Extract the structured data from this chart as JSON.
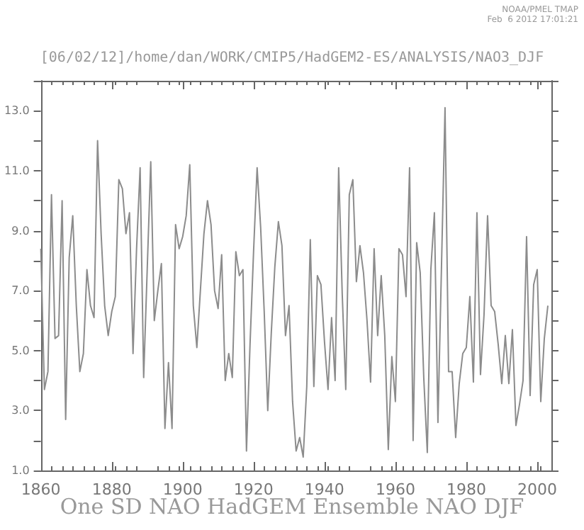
{
  "chart_data": {
    "type": "line",
    "title": "[06/02/12]/home/dan/WORK/CMIP5/HadGEM2-ES/ANALYSIS/NAO3_DJF",
    "xlabel": "One SD NAO HadGEM Ensemble NAO DJF",
    "annotations": [
      "NOAA/PMEL TMAP",
      "Feb  6 2012 17:01:21"
    ],
    "x": [
      1860,
      1861,
      1862,
      1863,
      1864,
      1865,
      1866,
      1867,
      1868,
      1869,
      1870,
      1871,
      1872,
      1873,
      1874,
      1875,
      1876,
      1877,
      1878,
      1879,
      1880,
      1881,
      1882,
      1883,
      1884,
      1885,
      1886,
      1887,
      1888,
      1889,
      1890,
      1891,
      1892,
      1893,
      1894,
      1895,
      1896,
      1897,
      1898,
      1899,
      1900,
      1901,
      1902,
      1903,
      1904,
      1905,
      1906,
      1907,
      1908,
      1909,
      1910,
      1911,
      1912,
      1913,
      1914,
      1915,
      1916,
      1917,
      1918,
      1919,
      1920,
      1921,
      1922,
      1923,
      1924,
      1925,
      1926,
      1927,
      1928,
      1929,
      1930,
      1931,
      1932,
      1933,
      1934,
      1935,
      1936,
      1937,
      1938,
      1939,
      1940,
      1941,
      1942,
      1943,
      1944,
      1945,
      1946,
      1947,
      1948,
      1949,
      1950,
      1951,
      1952,
      1953,
      1954,
      1955,
      1956,
      1957,
      1958,
      1959,
      1960,
      1961,
      1962,
      1963,
      1964,
      1965,
      1966,
      1967,
      1968,
      1969,
      1970,
      1971,
      1972,
      1973,
      1974,
      1975,
      1976,
      1977,
      1978,
      1979,
      1980,
      1981,
      1982,
      1983,
      1984,
      1985,
      1986,
      1987,
      1988,
      1989,
      1990,
      1991,
      1992,
      1993,
      1994,
      1995,
      1996,
      1997,
      1998,
      1999,
      2000,
      2001,
      2002,
      2003
    ],
    "series": [
      {
        "color": "#8c8c8c",
        "values": [
          8.4,
          3.7,
          4.3,
          10.2,
          5.4,
          5.5,
          10.0,
          2.7,
          8.1,
          9.5,
          6.5,
          4.3,
          4.9,
          7.7,
          6.5,
          6.1,
          12.0,
          8.9,
          6.5,
          5.5,
          6.3,
          6.8,
          10.7,
          10.4,
          8.9,
          9.6,
          4.9,
          8.4,
          11.1,
          4.1,
          7.7,
          11.3,
          6.0,
          7.0,
          7.9,
          2.4,
          4.6,
          2.4,
          9.2,
          8.4,
          8.8,
          9.5,
          11.2,
          6.5,
          5.1,
          7.0,
          8.9,
          10.0,
          9.2,
          7.0,
          6.4,
          8.2,
          4.0,
          4.9,
          4.1,
          8.3,
          7.5,
          7.7,
          1.65,
          5.2,
          8.3,
          11.1,
          9.1,
          6.3,
          3.0,
          5.6,
          7.8,
          9.3,
          8.5,
          5.5,
          6.5,
          3.3,
          1.65,
          2.1,
          1.45,
          3.8,
          8.7,
          3.8,
          7.5,
          7.2,
          5.3,
          3.7,
          6.1,
          4.0,
          11.1,
          6.9,
          3.7,
          10.2,
          10.7,
          7.3,
          8.5,
          7.6,
          6.0,
          3.95,
          8.4,
          5.5,
          7.5,
          5.5,
          1.7,
          4.8,
          3.3,
          8.4,
          8.2,
          6.8,
          11.1,
          2.0,
          8.6,
          7.6,
          4.1,
          1.6,
          7.7,
          9.6,
          2.6,
          7.8,
          13.1,
          4.3,
          4.3,
          2.1,
          3.9,
          4.9,
          5.1,
          6.8,
          3.95,
          9.6,
          4.2,
          6.2,
          9.5,
          6.5,
          6.3,
          5.2,
          3.9,
          5.5,
          3.9,
          5.7,
          2.5,
          3.2,
          4.0,
          8.8,
          3.5,
          7.2,
          7.7,
          3.3,
          5.4,
          6.5
        ]
      }
    ],
    "xlim": [
      1860,
      2004
    ],
    "xticks": [
      1860,
      1880,
      1900,
      1920,
      1940,
      1960,
      1980,
      2000
    ],
    "ylim": [
      1,
      14
    ],
    "yticks": [
      {
        "value": 1,
        "label": "1.0"
      },
      {
        "value": 2,
        "label": null
      },
      {
        "value": 3,
        "label": "3.0"
      },
      {
        "value": 4,
        "label": null
      },
      {
        "value": 5,
        "label": "5.0"
      },
      {
        "value": 6,
        "label": null
      },
      {
        "value": 7,
        "label": "7.0"
      },
      {
        "value": 8,
        "label": null
      },
      {
        "value": 9,
        "label": "9.0"
      },
      {
        "value": 10,
        "label": null
      },
      {
        "value": 11,
        "label": "11.0"
      },
      {
        "value": 12,
        "label": null
      },
      {
        "value": 13,
        "label": "13.0"
      },
      {
        "value": 14,
        "label": null
      }
    ],
    "grid": false,
    "marker": "none",
    "line_style": "solid"
  }
}
